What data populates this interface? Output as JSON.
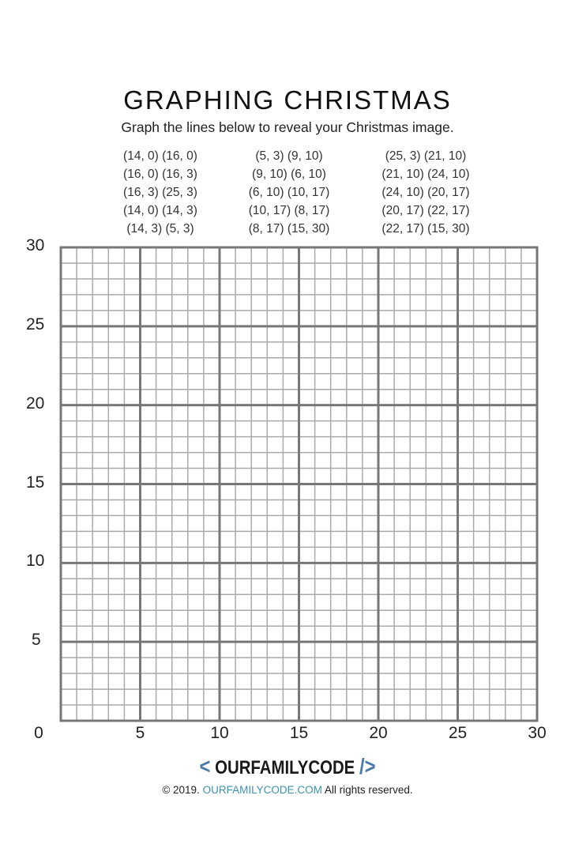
{
  "title": "GRAPHING CHRISTMAS",
  "subtitle": "Graph the lines below to reveal your Christmas image.",
  "segments": [
    [
      "(14, 0) (16, 0)",
      "(16, 0) (16, 3)",
      "(16, 3) (25, 3)",
      "(14, 0) (14, 3)",
      "(14, 3) (5, 3)"
    ],
    [
      "(5, 3) (9, 10)",
      "(9, 10) (6, 10)",
      "(6, 10) (10, 17)",
      "(10, 17) (8, 17)",
      "(8, 17) (15, 30)"
    ],
    [
      "(25, 3) (21, 10)",
      "(21, 10) (24, 10)",
      "(24, 10) (20, 17)",
      "(20, 17) (22, 17)",
      "(22, 17) (15, 30)"
    ]
  ],
  "grid": {
    "xlim": [
      0,
      30
    ],
    "ylim": [
      0,
      30
    ],
    "minor_step": 1,
    "major_step": 5,
    "x_ticks": [
      "0",
      "5",
      "10",
      "15",
      "20",
      "25",
      "30"
    ],
    "y_ticks": [
      "5",
      "10",
      "15",
      "20",
      "25",
      "30"
    ],
    "minor_color": "#aaaaaa",
    "major_color": "#777777"
  },
  "footer": {
    "logo_left": "<",
    "logo_text": "OURFAMILYCODE",
    "logo_right": "/>",
    "copyright_prefix": "© 2019.",
    "copyright_link": "OURFAMILYCODE.COM",
    "copyright_suffix": "All rights reserved.",
    "brand_color": "#4a7aa8",
    "link_color": "#3d93ad"
  }
}
